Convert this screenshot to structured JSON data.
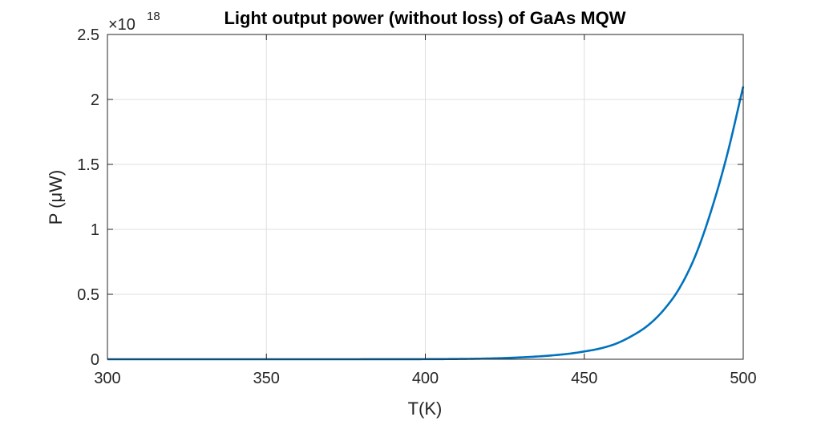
{
  "chart_data": {
    "type": "line",
    "title": "Light output power (without loss) of GaAs MQW",
    "xlabel": "T(K)",
    "ylabel": "P (μW)",
    "y_multiplier": "×10",
    "y_multiplier_exponent": "18",
    "xlim": [
      300,
      500
    ],
    "ylim": [
      0,
      2.5
    ],
    "xticks": [
      300,
      350,
      400,
      450,
      500
    ],
    "xtick_labels": [
      "300",
      "350",
      "400",
      "450",
      "500"
    ],
    "yticks": [
      0,
      0.5,
      1,
      1.5,
      2,
      2.5
    ],
    "ytick_labels": [
      "0",
      "0.5",
      "1",
      "1.5",
      "2",
      "2.5"
    ],
    "grid": true,
    "line_color": "#0072BD",
    "series": [
      {
        "x": [
          300,
          310,
          320,
          330,
          340,
          350,
          360,
          370,
          380,
          390,
          400,
          405,
          410,
          415,
          420,
          425,
          430,
          435,
          440,
          445,
          450,
          455,
          460,
          465,
          470,
          475,
          480,
          485,
          490,
          495,
          500
        ],
        "values": [
          0,
          0,
          0,
          0,
          0,
          0,
          0,
          0,
          0.0001,
          0.0003,
          0.0008,
          0.0013,
          0.0022,
          0.0036,
          0.006,
          0.0095,
          0.0145,
          0.021,
          0.03,
          0.042,
          0.06,
          0.083,
          0.12,
          0.18,
          0.26,
          0.38,
          0.55,
          0.8,
          1.15,
          1.58,
          2.1
        ]
      }
    ]
  }
}
